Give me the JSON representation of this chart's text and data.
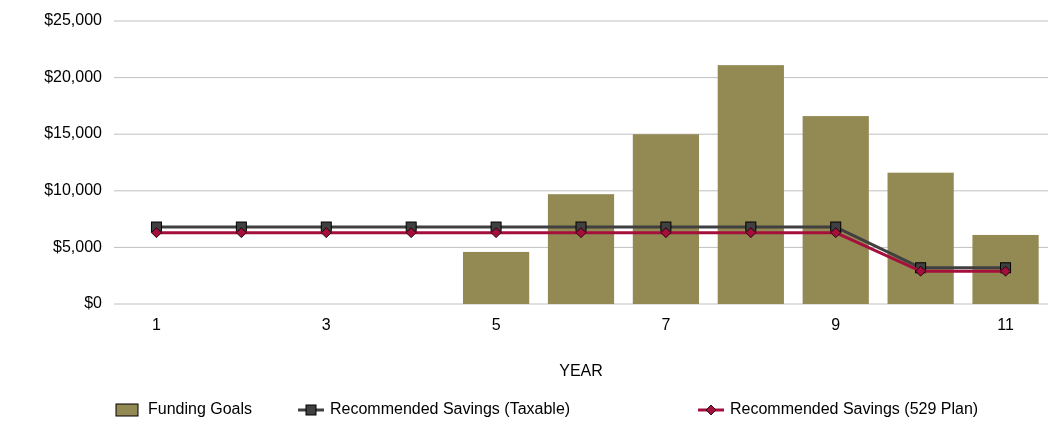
{
  "chart_data": {
    "type": "bar",
    "xlabel": "YEAR",
    "categories": [
      "1",
      null,
      "3",
      null,
      "5",
      null,
      "7",
      null,
      "9",
      null,
      "11"
    ],
    "series": [
      {
        "name": "Funding Goals",
        "color": "#938953",
        "values": [
          0,
          0,
          0,
          0,
          4600,
          9700,
          15000,
          21100,
          16600,
          11600,
          6100
        ]
      },
      {
        "name": "Recommended Savings (Taxable)",
        "type": "line",
        "color": "#404040",
        "marker": "square",
        "values": [
          6800,
          6800,
          6800,
          6800,
          6800,
          6800,
          6800,
          6800,
          6800,
          3200,
          3200
        ]
      },
      {
        "name": "Recommended Savings (529 Plan)",
        "type": "line",
        "color": "#a50f3c",
        "marker": "diamond",
        "values": [
          6300,
          6300,
          6300,
          6300,
          6300,
          6300,
          6300,
          6300,
          6300,
          2900,
          2900
        ]
      }
    ],
    "ylim": [
      0,
      25000
    ],
    "yticks": [
      {
        "value": 0,
        "label": "$0"
      },
      {
        "value": 5000,
        "label": "$5,000"
      },
      {
        "value": 10000,
        "label": "$10,000"
      },
      {
        "value": 15000,
        "label": "$15,000"
      },
      {
        "value": 20000,
        "label": "$20,000"
      },
      {
        "value": 25000,
        "label": "$25,000"
      }
    ],
    "grid": "y",
    "legend": "bottom"
  }
}
